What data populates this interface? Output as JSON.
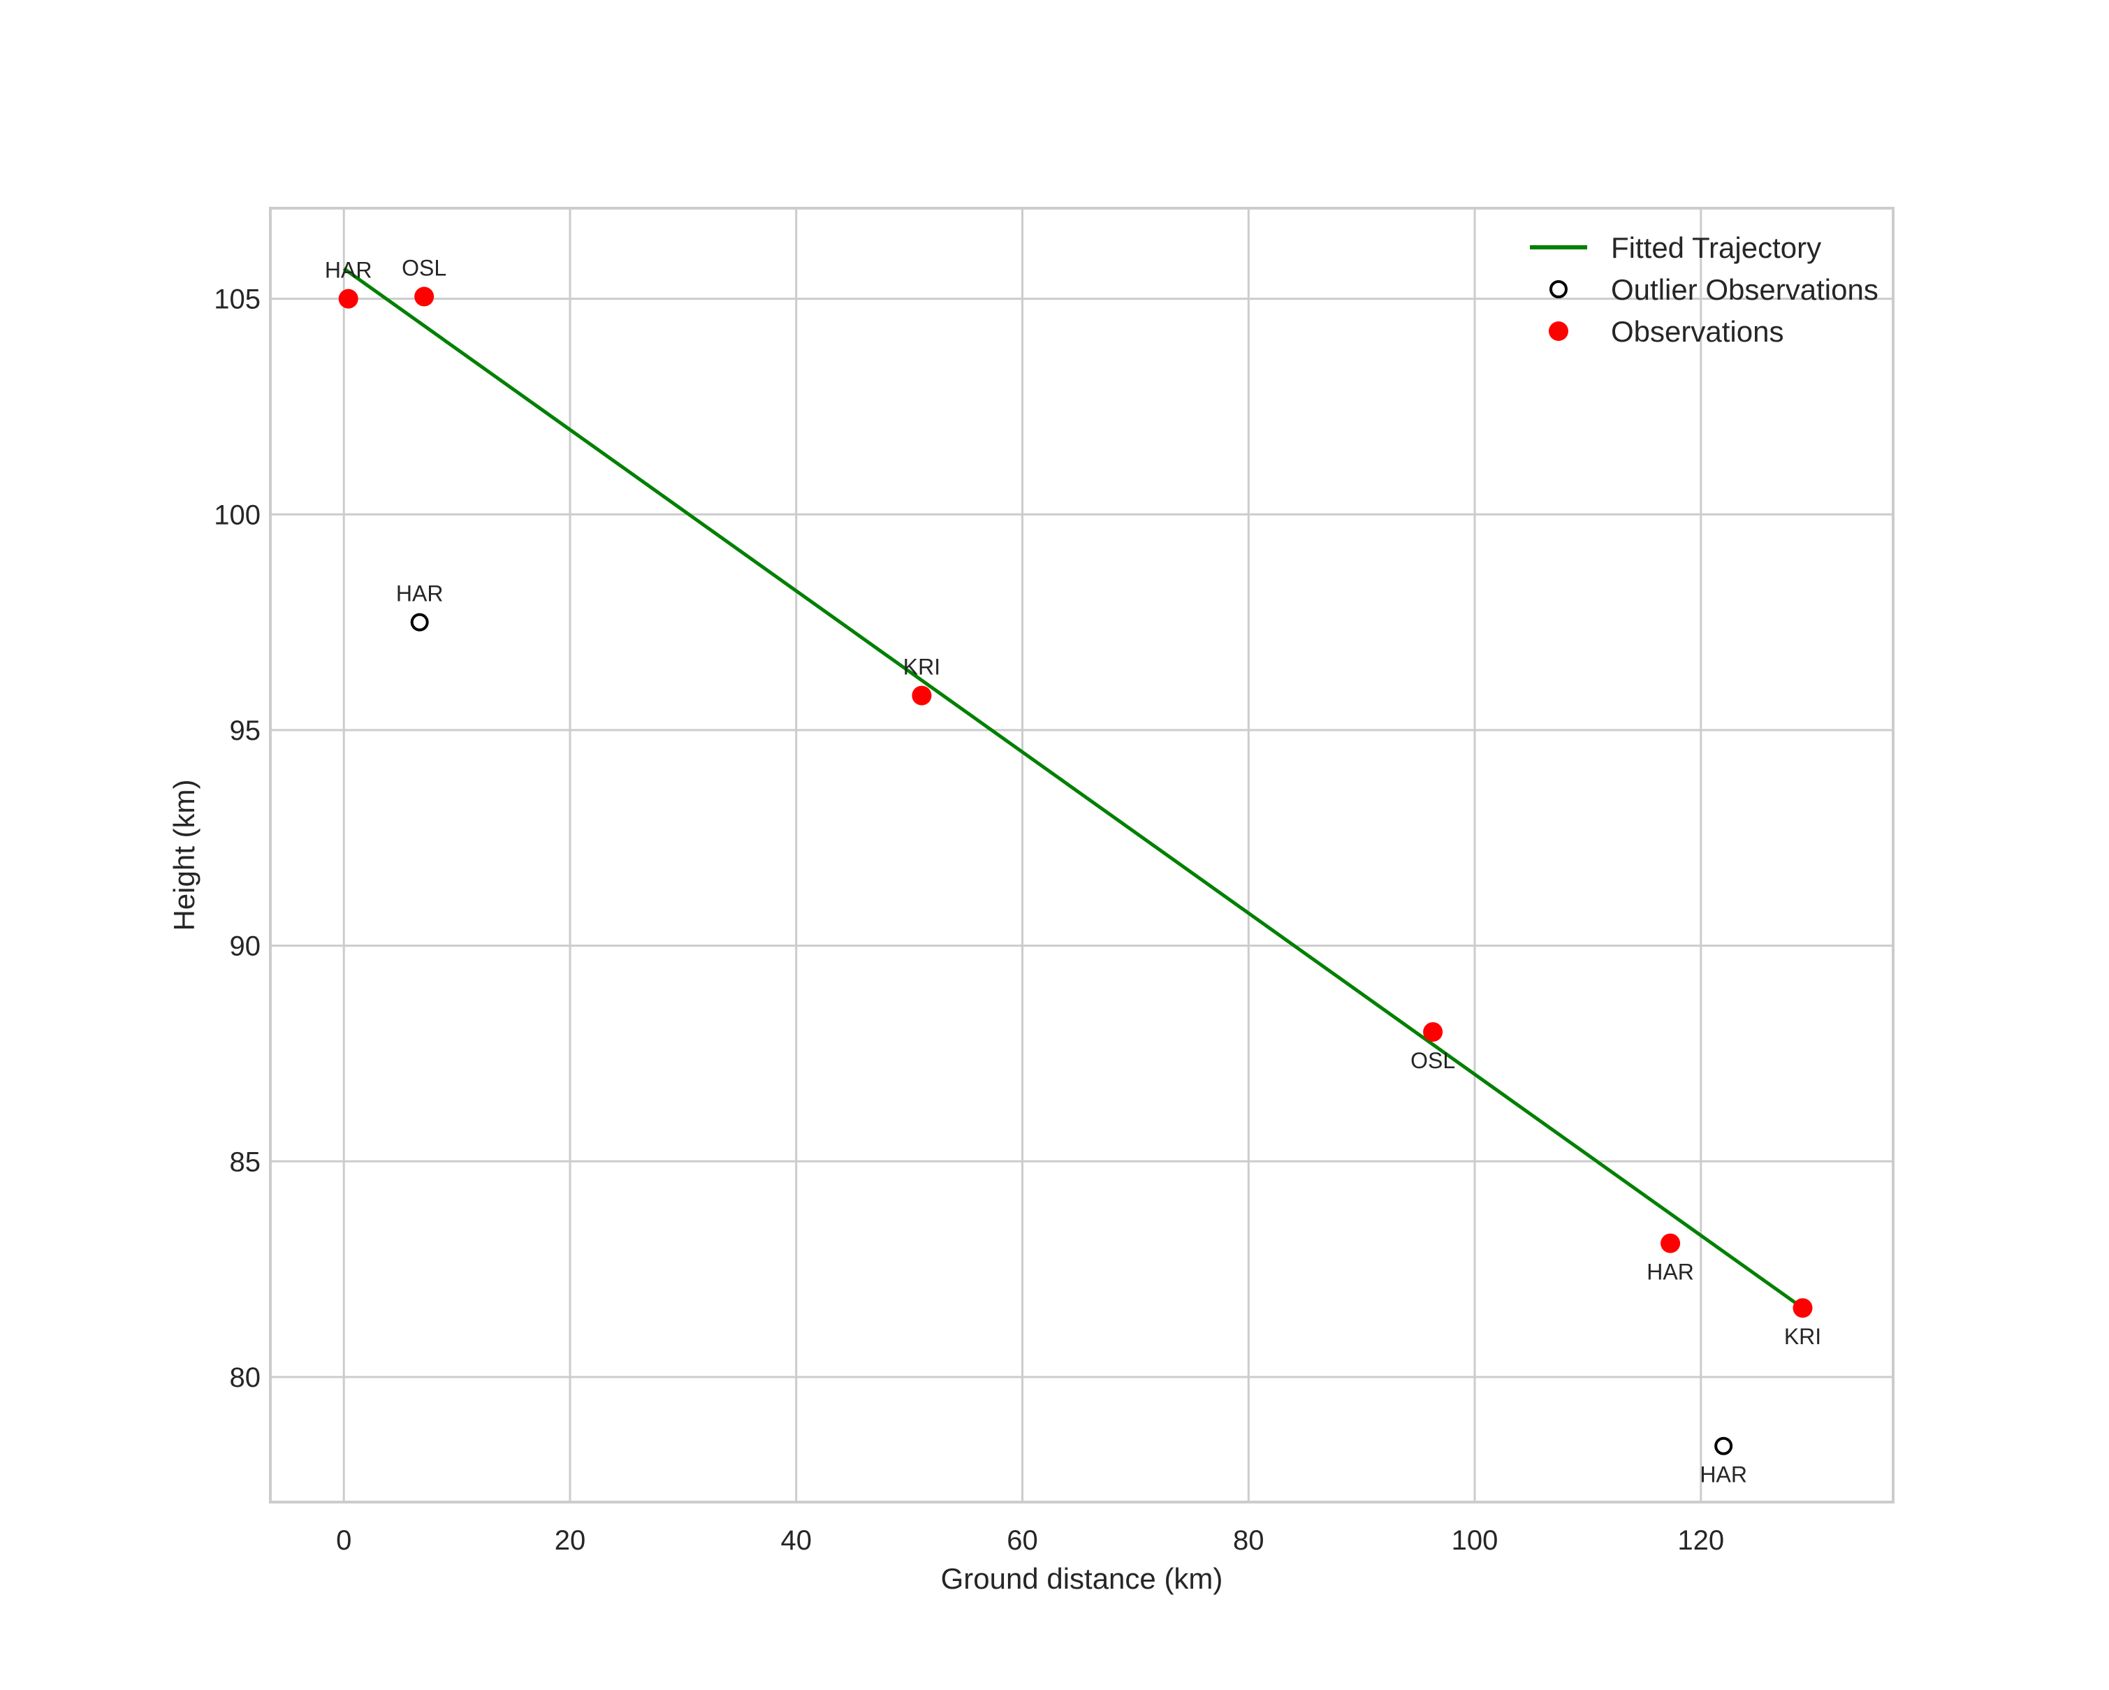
{
  "chart_data": {
    "type": "scatter",
    "title": "",
    "xlabel": "Ground distance (km)",
    "ylabel": "Height (km)",
    "xlim": [
      -6.5,
      137
    ],
    "ylim": [
      77.1,
      107.1
    ],
    "xticks": [
      0,
      20,
      40,
      60,
      80,
      100,
      120
    ],
    "yticks": [
      80,
      85,
      90,
      95,
      100,
      105
    ],
    "grid": true,
    "legend_position": "upper right",
    "legend": [
      "Fitted Trajectory",
      "Outlier Observations",
      "Observations"
    ],
    "colors": {
      "trajectory": "#008000",
      "observation": "#ff0000",
      "outlier_edge": "#000000",
      "grid": "#cccccc",
      "frame": "#cccccc"
    },
    "series": [
      {
        "name": "Fitted Trajectory",
        "kind": "line",
        "points": [
          {
            "x": 0.0,
            "y": 105.7
          },
          {
            "x": 129.0,
            "y": 81.6
          }
        ]
      },
      {
        "name": "Outlier Observations",
        "kind": "scatter-open",
        "points": [
          {
            "x": 6.7,
            "y": 97.5,
            "label": "HAR",
            "label_pos": "above"
          },
          {
            "x": 122.0,
            "y": 78.4,
            "label": "HAR",
            "label_pos": "below"
          }
        ]
      },
      {
        "name": "Observations",
        "kind": "scatter-filled",
        "points": [
          {
            "x": 0.4,
            "y": 105.0,
            "label": "HAR",
            "label_pos": "above"
          },
          {
            "x": 7.1,
            "y": 105.05,
            "label": "OSL",
            "label_pos": "above"
          },
          {
            "x": 51.1,
            "y": 95.8,
            "label": "KRI",
            "label_pos": "above"
          },
          {
            "x": 96.3,
            "y": 88.0,
            "label": "OSL",
            "label_pos": "below"
          },
          {
            "x": 117.3,
            "y": 83.1,
            "label": "HAR",
            "label_pos": "below"
          },
          {
            "x": 129.0,
            "y": 81.6,
            "label": "KRI",
            "label_pos": "below"
          }
        ]
      }
    ]
  }
}
